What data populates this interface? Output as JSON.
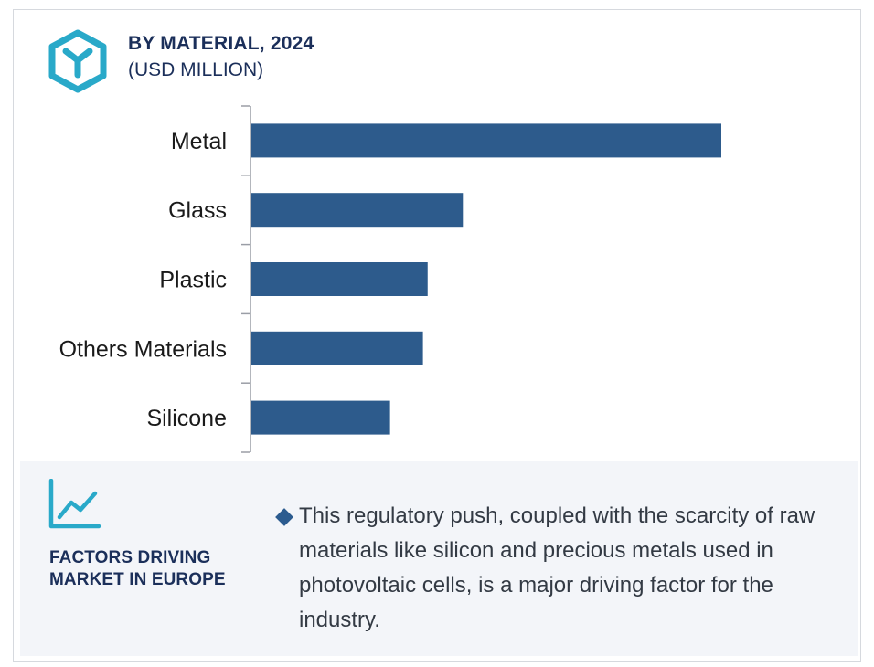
{
  "header": {
    "title": "BY MATERIAL, 2024",
    "subtitle": "(USD MILLION)",
    "logo_icon": "hexagon-y-logo-icon",
    "accent_color": "#29a9c9"
  },
  "chart_data": {
    "type": "bar",
    "orientation": "horizontal",
    "categories": [
      "Metal",
      "Glass",
      "Plastic",
      "Others Materials",
      "Silicone"
    ],
    "values": [
      100,
      45,
      37.5,
      36.5,
      29.5
    ],
    "title": "BY MATERIAL, 2024",
    "subtitle": "(USD MILLION)",
    "xlabel": "",
    "ylabel": "",
    "xlim": [
      0,
      100
    ],
    "grid": false,
    "legend": "none",
    "bar_color": "#2d5b8c"
  },
  "factors": {
    "icon": "trend-line-chart-icon",
    "title_line1": "FACTORS DRIVING",
    "title_line2": "MARKET IN EUROPE",
    "bullet_icon": "diamond-bullet-icon",
    "text": "This regulatory push, coupled with the scarcity of raw materials like silicon and precious metals used in photovoltaic cells, is a major driving factor for the industry."
  }
}
